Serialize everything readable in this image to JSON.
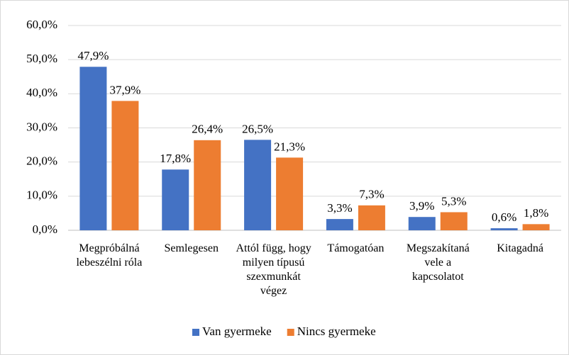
{
  "chart_data": {
    "type": "bar",
    "categories": [
      "Megpróbálná lebeszélni róla",
      "Semlegesen",
      "Attól függ, hogy milyen típusú szexmunkát végez",
      "Támogatóan",
      "Megszakítaná vele a kapcsolatot",
      "Kitagadná"
    ],
    "series": [
      {
        "name": "Van gyermeke",
        "color": "#4472c4",
        "values": [
          47.9,
          17.8,
          26.5,
          3.3,
          3.9,
          0.6
        ],
        "value_labels": [
          "47,9%",
          "17,8%",
          "26,5%",
          "3,3%",
          "3,9%",
          "0,6%"
        ]
      },
      {
        "name": "Nincs gyermeke",
        "color": "#ed7d31",
        "values": [
          37.9,
          26.4,
          21.3,
          7.3,
          5.3,
          1.8
        ],
        "value_labels": [
          "37,9%",
          "26,4%",
          "21,3%",
          "7,3%",
          "5,3%",
          "1,8%"
        ]
      }
    ],
    "ylim": [
      0,
      60
    ],
    "yticks": [
      {
        "value": 0,
        "label": "0,0%"
      },
      {
        "value": 10,
        "label": "10,0%"
      },
      {
        "value": 20,
        "label": "20,0%"
      },
      {
        "value": 30,
        "label": "30,0%"
      },
      {
        "value": 40,
        "label": "40,0%"
      },
      {
        "value": 50,
        "label": "50,0%"
      },
      {
        "value": 60,
        "label": "60,0%"
      }
    ],
    "grid": true,
    "legend": "bottom"
  }
}
